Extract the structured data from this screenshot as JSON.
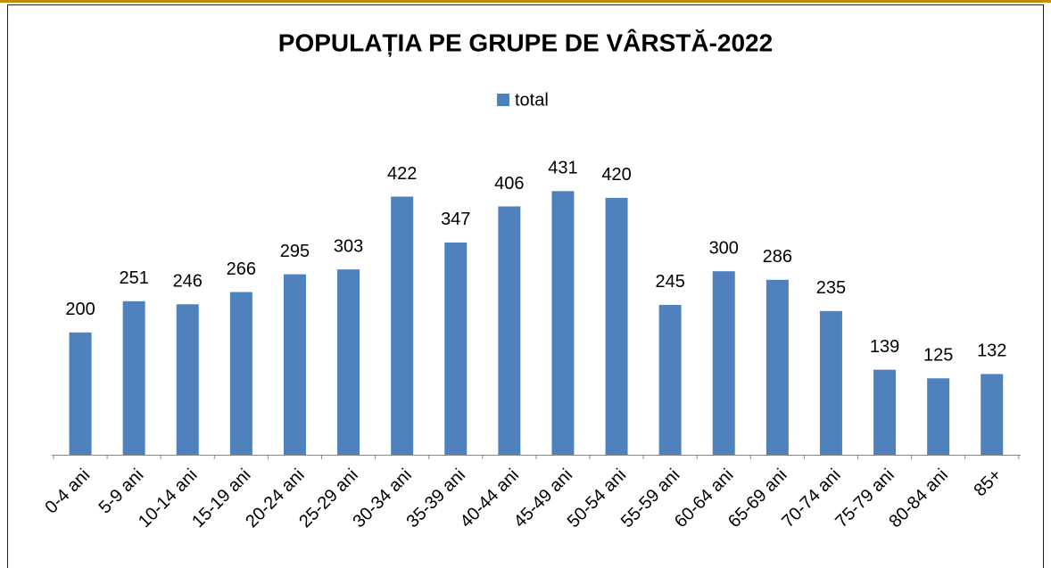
{
  "chart_data": {
    "type": "bar",
    "title": "POPULAȚIA PE GRUPE DE VÂRSTĂ-2022",
    "categories": [
      "0-4 ani",
      "5-9 ani",
      "10-14 ani",
      "15-19 ani",
      "20-24 ani",
      "25-29 ani",
      "30-34 ani",
      "35-39 ani",
      "40-44 ani",
      "45-49 ani",
      "50-54 ani",
      "55-59 ani",
      "60-64 ani",
      "65-69 ani",
      "70-74 ani",
      "75-79 ani",
      "80-84 ani",
      "85+"
    ],
    "series": [
      {
        "name": "total",
        "color": "#4f81bd",
        "values": [
          200,
          251,
          246,
          266,
          295,
          303,
          422,
          347,
          406,
          431,
          420,
          245,
          300,
          286,
          235,
          139,
          125,
          132
        ]
      }
    ],
    "legend": "top"
  }
}
